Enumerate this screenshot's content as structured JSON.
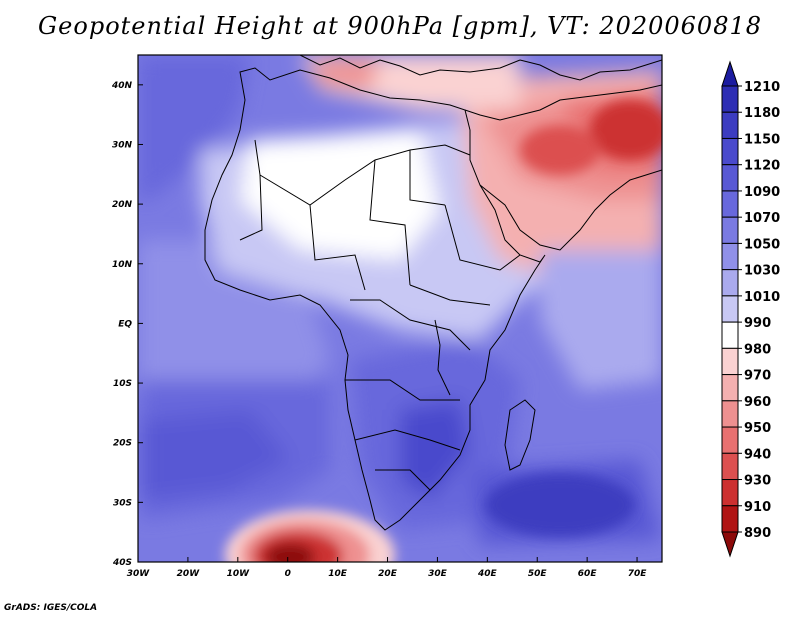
{
  "title": "Geopotential Height at 900hPa [gpm], VT: 2020060818",
  "credit": "GrADS: IGES/COLA",
  "map": {
    "region": "Africa and Middle East",
    "variable": "Geopotential Height",
    "level": "900hPa",
    "units": "gpm",
    "valid_time": "2020060818",
    "lat_ticks": [
      {
        "value": 40,
        "label": "40N"
      },
      {
        "value": 30,
        "label": "30N"
      },
      {
        "value": 20,
        "label": "20N"
      },
      {
        "value": 10,
        "label": "10N"
      },
      {
        "value": 0,
        "label": "EQ"
      },
      {
        "value": -10,
        "label": "10S"
      },
      {
        "value": -20,
        "label": "20S"
      },
      {
        "value": -30,
        "label": "30S"
      },
      {
        "value": -40,
        "label": "40S"
      }
    ],
    "lon_ticks": [
      {
        "value": -30,
        "label": "30W"
      },
      {
        "value": -20,
        "label": "20W"
      },
      {
        "value": -10,
        "label": "10W"
      },
      {
        "value": 0,
        "label": "0"
      },
      {
        "value": 10,
        "label": "10E"
      },
      {
        "value": 20,
        "label": "20E"
      },
      {
        "value": 30,
        "label": "30E"
      },
      {
        "value": 40,
        "label": "40E"
      },
      {
        "value": 50,
        "label": "50E"
      },
      {
        "value": 60,
        "label": "60E"
      },
      {
        "value": 70,
        "label": "70E"
      }
    ],
    "lon_range": [
      -30,
      75
    ],
    "lat_range": [
      -40,
      45
    ]
  },
  "colorbar": {
    "levels": [
      "1210",
      "1180",
      "1150",
      "1120",
      "1090",
      "1070",
      "1050",
      "1030",
      "1010",
      "990",
      "980",
      "970",
      "960",
      "950",
      "940",
      "930",
      "910",
      "890"
    ],
    "colors": [
      "#1c1ca0",
      "#2e2eb4",
      "#3c3cc0",
      "#4a4acc",
      "#5858d4",
      "#6868dc",
      "#7a7ae2",
      "#9090e8",
      "#aaaaee",
      "#c8c8f4",
      "#ffffff",
      "#fad2d2",
      "#f4b0b0",
      "#ee9090",
      "#e87070",
      "#dc5050",
      "#cc3030",
      "#b01414",
      "#8c0a0a"
    ]
  },
  "features": [
    {
      "name": "low-south-atlantic",
      "lon": 0,
      "lat": -38,
      "level": "890"
    },
    {
      "name": "high-southwest-indian-ocean",
      "lon": 52,
      "lat": -27,
      "level": "1120"
    },
    {
      "name": "low-arabian-iran",
      "lon": 60,
      "lat": 32,
      "level": "950"
    }
  ]
}
